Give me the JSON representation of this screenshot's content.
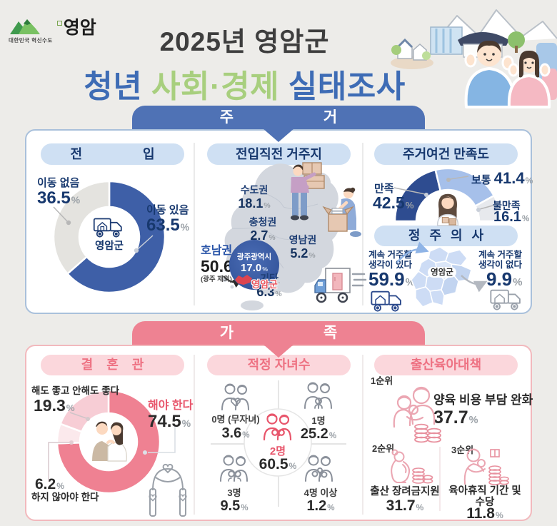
{
  "percent_sign": "%",
  "header": {
    "logo_tagline": "대한민국 혁신수도",
    "logo_name": "영암",
    "title_line1": "2025년 영암군",
    "title_word1": "청년",
    "title_word2": "사회·경제",
    "title_word3": "실태조사"
  },
  "sections": {
    "housing": {
      "banner": "주 거"
    },
    "family": {
      "banner": "가 족"
    }
  },
  "colors": {
    "housing_accent": "#4f72b5",
    "family_accent": "#ee8292",
    "navy_text": "#17386e",
    "rose_text": "#e8566c"
  },
  "chart_data": [
    {
      "id": "move_in",
      "type": "donut",
      "title": "전 입",
      "segments": [
        {
          "label": "이동 있음",
          "value": 63.5,
          "display": "63.5",
          "color": "#3e5fa7"
        },
        {
          "label": "이동 없음",
          "value": 36.5,
          "display": "36.5",
          "color": "#e4e3df"
        }
      ],
      "center_label": "영암군"
    },
    {
      "id": "prev_residence",
      "type": "map",
      "title": "전입직전 거주지",
      "regions": [
        {
          "name": "수도권",
          "value": 18.1,
          "display": "18.1"
        },
        {
          "name": "충청권",
          "value": 2.7,
          "display": "2.7"
        },
        {
          "name": "영남권",
          "value": 5.2,
          "display": "5.2"
        },
        {
          "name": "호남권",
          "value": 50.6,
          "display": "50.6",
          "note": "(광주 제외)"
        },
        {
          "name": "광주광역시",
          "value": 17.0,
          "display": "17.0"
        },
        {
          "name": "기타",
          "value": 6.3,
          "display": "6.3"
        }
      ],
      "marker_label": "영암군"
    },
    {
      "id": "satisfaction",
      "type": "gauge",
      "title": "주거여건 만족도",
      "segments": [
        {
          "label": "만족",
          "value": 42.5,
          "display": "42.5",
          "color": "#2e4c90"
        },
        {
          "label": "보통",
          "value": 41.4,
          "display": "41.4",
          "color": "#a6c0ea"
        },
        {
          "label": "불만족",
          "value": 16.1,
          "display": "16.1",
          "color": "#e7e9ed"
        }
      ]
    },
    {
      "id": "settlement",
      "type": "pictorial",
      "title": "정 주 의 사",
      "items": [
        {
          "label_line1": "계속 거주할",
          "label_line2": "생각이 있다",
          "value": 59.9,
          "display": "59.9"
        },
        {
          "label_line1": "계속 거주할",
          "label_line2": "생각이 없다",
          "value": 9.9,
          "display": "9.9"
        }
      ],
      "map_label": "영암군"
    },
    {
      "id": "marriage",
      "type": "donut",
      "title": "결 혼 관",
      "segments": [
        {
          "label": "해야 한다",
          "value": 74.5,
          "display": "74.5",
          "color": "#ef8192"
        },
        {
          "label": "하지 않아야 한다",
          "value": 6.2,
          "display": "6.2",
          "color": "#fbe9ec"
        },
        {
          "label": "해도 좋고 안해도 좋다",
          "value": 19.3,
          "display": "19.3",
          "color": "#f7cdd5"
        }
      ]
    },
    {
      "id": "children",
      "type": "pictorial",
      "title": "적정 자녀수",
      "items": [
        {
          "label": "0명 (무자녀)",
          "value": 3.6,
          "display": "3.6"
        },
        {
          "label": "1명",
          "value": 25.2,
          "display": "25.2"
        },
        {
          "label": "3명",
          "value": 9.5,
          "display": "9.5"
        },
        {
          "label": "4명 이상",
          "value": 1.2,
          "display": "1.2"
        }
      ],
      "center": {
        "label": "2명",
        "value": 60.5,
        "display": "60.5"
      }
    },
    {
      "id": "childcare",
      "type": "ranking",
      "title": "출산육아대책",
      "items": [
        {
          "rank": "1순위",
          "label": "양육 비용 부담 완화",
          "value": 37.7,
          "display": "37.7"
        },
        {
          "rank": "2순위",
          "label": "출산 장려금지원",
          "value": 31.7,
          "display": "31.7"
        },
        {
          "rank": "3순위",
          "label_line1": "육아휴직 기간 및",
          "label_line2": "수당",
          "value": 11.8,
          "display": "11.8"
        }
      ]
    }
  ]
}
